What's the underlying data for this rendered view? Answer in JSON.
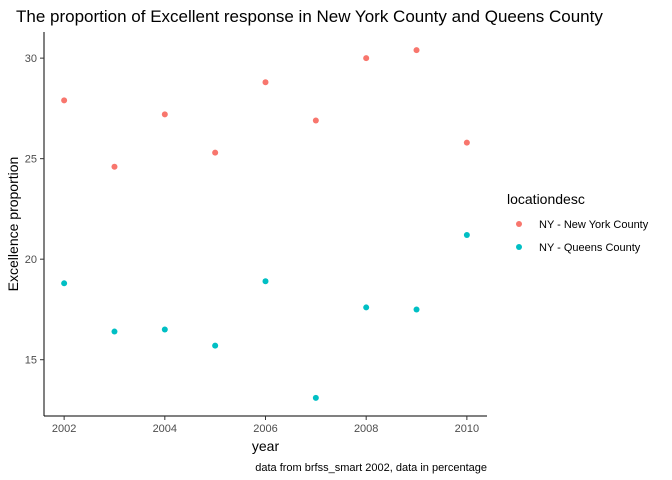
{
  "chart_data": {
    "type": "scatter",
    "title": "The proportion of Excellent response in New York County and Queens County",
    "xlabel": "year",
    "ylabel": "Excellence proportion",
    "caption": "data from brfss_smart 2002, data in percentage",
    "xlim": [
      2001.6,
      2010.4
    ],
    "ylim": [
      12.2,
      31.3
    ],
    "x_ticks": [
      2002,
      2004,
      2006,
      2008,
      2010
    ],
    "y_ticks": [
      15,
      20,
      25,
      30
    ],
    "grid": false,
    "legend": {
      "title": "locationdesc",
      "position": "right"
    },
    "series": [
      {
        "name": "NY - New York County",
        "color": "#F8766D",
        "x": [
          2002,
          2003,
          2004,
          2005,
          2006,
          2007,
          2008,
          2009,
          2010
        ],
        "y": [
          27.9,
          24.6,
          27.2,
          25.3,
          28.8,
          26.9,
          30.0,
          30.4,
          25.8
        ]
      },
      {
        "name": "NY - Queens County",
        "color": "#00BFC4",
        "x": [
          2002,
          2003,
          2004,
          2005,
          2006,
          2007,
          2008,
          2009,
          2010
        ],
        "y": [
          18.8,
          16.4,
          16.5,
          15.7,
          18.9,
          13.1,
          17.6,
          17.5,
          21.2
        ]
      }
    ]
  }
}
